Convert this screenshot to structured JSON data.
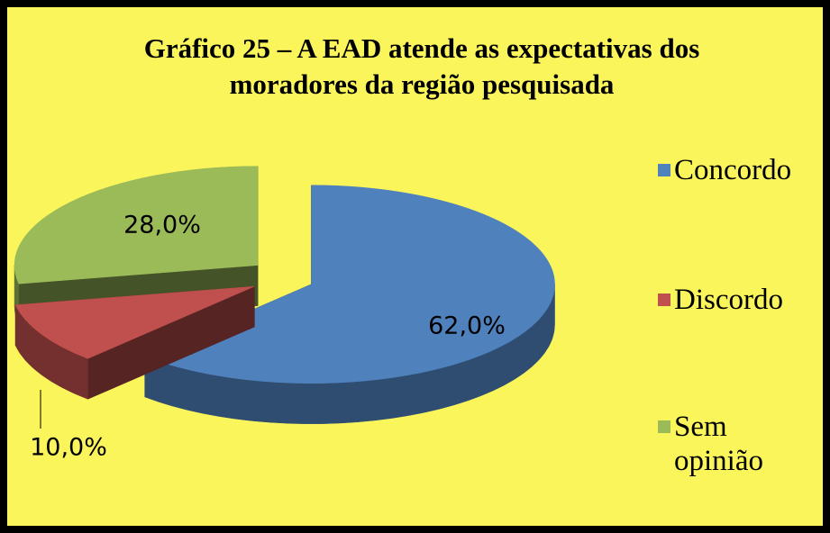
{
  "chart_data": {
    "type": "pie",
    "title": "Gráfico 25 – A EAD atende as expectativas dos moradores da região pesquisada",
    "categories": [
      "Concordo",
      "Discordo",
      "Sem opinião"
    ],
    "values": [
      62,
      10,
      28
    ],
    "value_labels": [
      "62,0%",
      "10,0%",
      "28,0%"
    ],
    "colors": [
      "#4f81bd",
      "#c0504d",
      "#9bbb59"
    ],
    "legend": "right"
  }
}
